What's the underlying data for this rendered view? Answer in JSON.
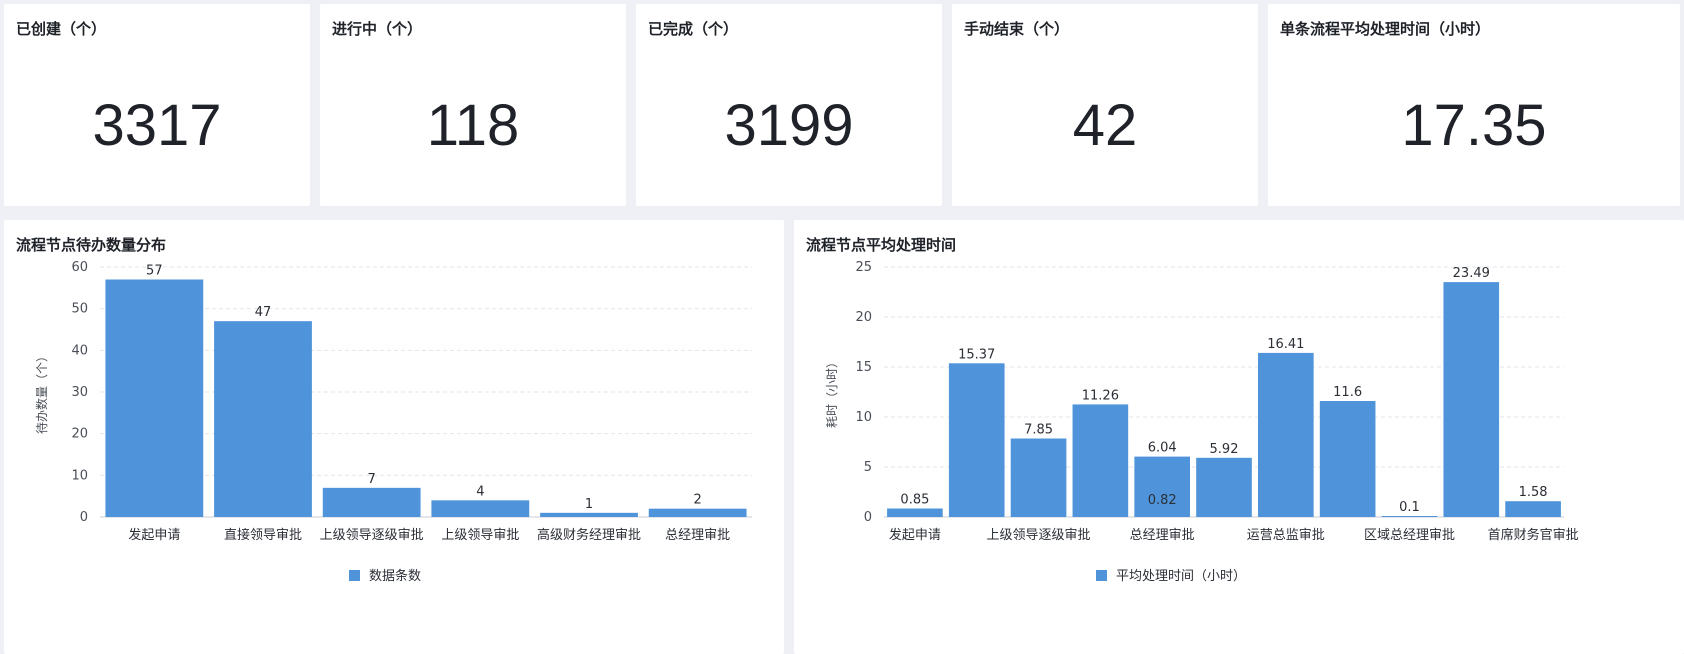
{
  "kpis": [
    {
      "label": "已创建（个）",
      "value": "3317"
    },
    {
      "label": "进行中（个）",
      "value": "118"
    },
    {
      "label": "已完成（个）",
      "value": "3199"
    },
    {
      "label": "手动结束（个）",
      "value": "42"
    },
    {
      "label": "单条流程平均处理时间（小时）",
      "value": "17.35"
    }
  ],
  "left_panel": {
    "title": "流程节点待办数量分布"
  },
  "right_panel": {
    "title": "流程节点平均处理时间"
  },
  "colors": {
    "bar": "#4f94da",
    "grid": "#e3e6eb",
    "axis": "#c9ced6"
  },
  "chart_data": [
    {
      "type": "bar",
      "title": "流程节点待办数量分布",
      "xlabel": "",
      "ylabel": "待办数量（个）",
      "ylim": [
        0,
        60
      ],
      "yticks": [
        0,
        10,
        20,
        30,
        40,
        50,
        60
      ],
      "grid": true,
      "legend": "bottom",
      "categories": [
        "发起申请",
        "直接领导审批",
        "上级领导逐级审批",
        "上级领导审批",
        "高级财务经理审批",
        "总经理审批"
      ],
      "series": [
        {
          "name": "数据条数",
          "values": [
            57,
            47,
            7,
            4,
            1,
            2
          ]
        }
      ],
      "data_labels": [
        "57",
        "47",
        "7",
        "4",
        "1",
        "2"
      ]
    },
    {
      "type": "bar",
      "title": "流程节点平均处理时间",
      "xlabel": "",
      "ylabel": "耗时（小时）",
      "ylim": [
        0,
        25
      ],
      "yticks": [
        0,
        5,
        10,
        15,
        20,
        25
      ],
      "grid": true,
      "legend": "bottom",
      "categories": [
        "发起申请",
        "",
        "上级领导逐级审批",
        "",
        "总经理审批",
        "",
        "运营总监审批",
        "",
        "区域总经理审批",
        "",
        "首席财务官审批"
      ],
      "series": [
        {
          "name": "平均处理时间（小时）",
          "values": [
            0.85,
            15.37,
            7.85,
            11.26,
            6.04,
            5.92,
            16.41,
            11.6,
            0.1,
            23.49,
            1.58
          ]
        }
      ],
      "data_labels": [
        "0.85",
        "15.37",
        "7.85",
        "11.26",
        "6.04",
        "5.92",
        "16.41",
        "11.6",
        "0.1",
        "23.49",
        "1.58"
      ],
      "annotations": [
        "0.82"
      ]
    }
  ]
}
